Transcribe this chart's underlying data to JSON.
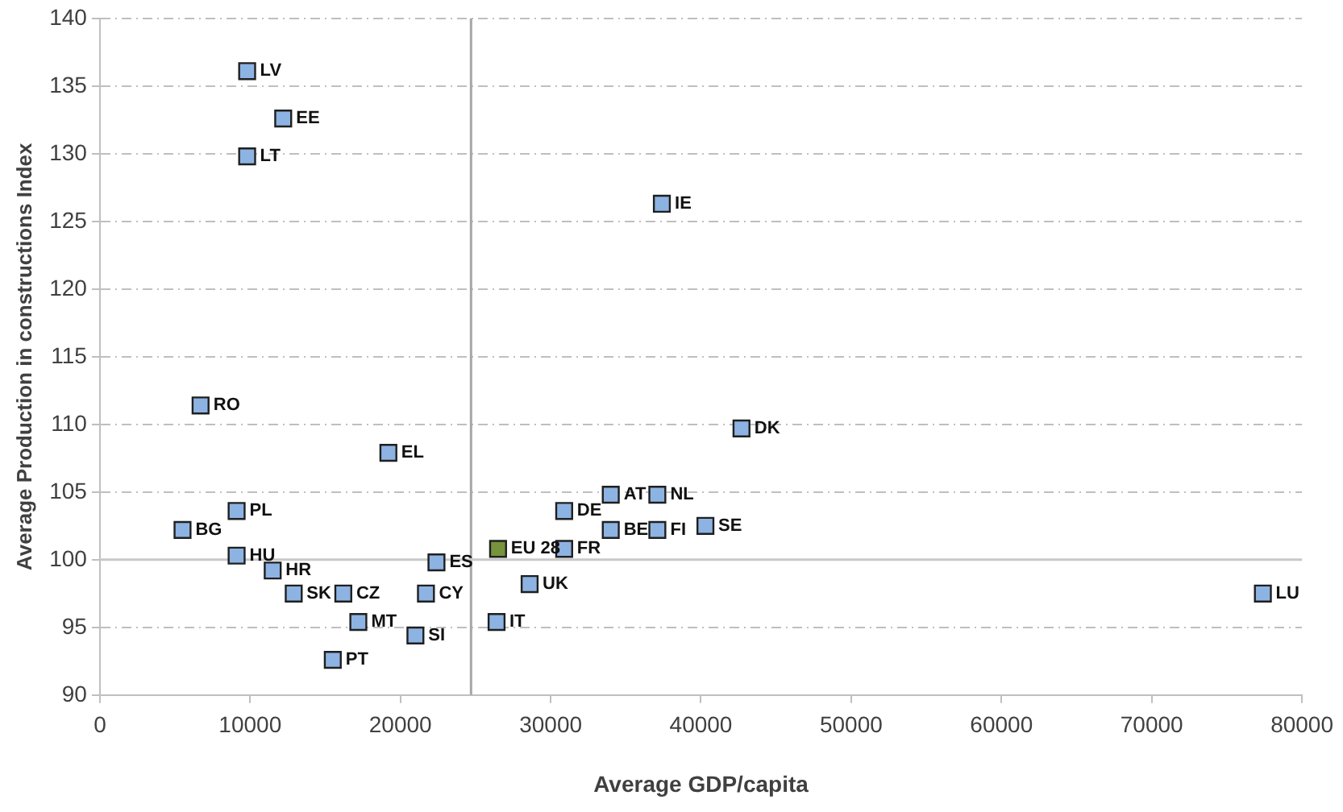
{
  "chart_data": {
    "type": "scatter",
    "xlabel": "Average GDP/capita",
    "ylabel": "Average Production in constructions Index",
    "xlim": [
      0,
      80000
    ],
    "xticks": [
      0,
      10000,
      20000,
      30000,
      40000,
      50000,
      60000,
      70000,
      80000
    ],
    "ylim": [
      90,
      140
    ],
    "yticks": [
      90,
      95,
      100,
      105,
      110,
      115,
      120,
      125,
      130,
      135,
      140
    ],
    "grid": "y",
    "marker": "square",
    "ref_lines": [
      {
        "axis": "x",
        "value": 24700,
        "color": "#a6a6a6"
      },
      {
        "axis": "y",
        "value": 100,
        "color": "#c8c8c8"
      }
    ],
    "series": [
      {
        "color": "#8db3e2",
        "x": [
          9800,
          9800,
          12200,
          37400,
          6700,
          42700,
          19200,
          5500,
          9100,
          9100,
          11500,
          12900,
          16200,
          15500,
          17200,
          21000,
          21700,
          22400,
          26400,
          28600,
          30900,
          30900,
          34000,
          34000,
          37100,
          37100,
          40300,
          77400
        ],
        "values": [
          136.1,
          129.8,
          132.6,
          126.3,
          111.4,
          109.7,
          107.9,
          102.2,
          103.6,
          100.3,
          99.2,
          97.5,
          97.5,
          92.6,
          95.4,
          94.4,
          97.5,
          99.8,
          95.4,
          98.2,
          103.6,
          100.8,
          104.8,
          102.2,
          104.8,
          102.2,
          102.5,
          97.5
        ]
      },
      {
        "color": "#77933c",
        "x": [
          26500
        ],
        "values": [
          100.8
        ]
      }
    ],
    "annotations": [
      {
        "text": "LV",
        "x": 9800,
        "y": 136.1
      },
      {
        "text": "LT",
        "x": 9800,
        "y": 129.8
      },
      {
        "text": "EE",
        "x": 12200,
        "y": 132.6
      },
      {
        "text": "IE",
        "x": 37400,
        "y": 126.3
      },
      {
        "text": "RO",
        "x": 6700,
        "y": 111.4
      },
      {
        "text": "DK",
        "x": 42700,
        "y": 109.7
      },
      {
        "text": "EL",
        "x": 19200,
        "y": 107.9
      },
      {
        "text": "BG",
        "x": 5500,
        "y": 102.2
      },
      {
        "text": "PL",
        "x": 9100,
        "y": 103.6
      },
      {
        "text": "HU",
        "x": 9100,
        "y": 100.3
      },
      {
        "text": "HR",
        "x": 11500,
        "y": 99.2
      },
      {
        "text": "SK",
        "x": 12900,
        "y": 97.5
      },
      {
        "text": "CZ",
        "x": 16200,
        "y": 97.5
      },
      {
        "text": "PT",
        "x": 15500,
        "y": 92.6
      },
      {
        "text": "MT",
        "x": 17200,
        "y": 95.4
      },
      {
        "text": "SI",
        "x": 21000,
        "y": 94.4
      },
      {
        "text": "CY",
        "x": 21700,
        "y": 97.5
      },
      {
        "text": "ES",
        "x": 22400,
        "y": 99.8
      },
      {
        "text": "IT",
        "x": 26400,
        "y": 95.4
      },
      {
        "text": "UK",
        "x": 28600,
        "y": 98.2
      },
      {
        "text": "DE",
        "x": 30900,
        "y": 103.6
      },
      {
        "text": "FR",
        "x": 30900,
        "y": 100.8
      },
      {
        "text": "AT",
        "x": 34000,
        "y": 104.8
      },
      {
        "text": "BE",
        "x": 34000,
        "y": 102.2
      },
      {
        "text": "NL",
        "x": 37100,
        "y": 104.8
      },
      {
        "text": "FI",
        "x": 37100,
        "y": 102.2
      },
      {
        "text": "SE",
        "x": 40300,
        "y": 102.5
      },
      {
        "text": "LU",
        "x": 77400,
        "y": 97.5
      },
      {
        "text": "EU 28",
        "x": 26500,
        "y": 100.8
      }
    ]
  }
}
